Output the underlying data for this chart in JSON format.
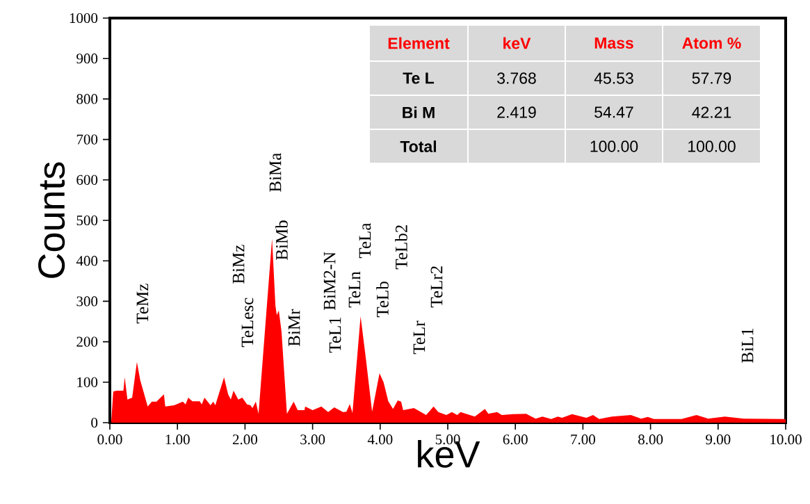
{
  "chart_data": [
    {
      "type": "area",
      "xlabel": "keV",
      "ylabel": "Counts",
      "color": "#ff0000",
      "x": [
        0.02,
        0.05,
        0.1,
        0.2,
        0.22,
        0.26,
        0.33,
        0.4,
        0.45,
        0.56,
        0.62,
        0.69,
        0.8,
        0.82,
        0.95,
        1.08,
        1.12,
        1.16,
        1.22,
        1.33,
        1.36,
        1.4,
        1.49,
        1.53,
        1.56,
        1.69,
        1.75,
        1.79,
        1.83,
        1.9,
        1.96,
        2.03,
        2.08,
        2.11,
        2.16,
        2.2,
        2.4,
        2.45,
        2.47,
        2.5,
        2.54,
        2.62,
        2.72,
        2.78,
        2.88,
        2.89,
        3.0,
        3.13,
        3.23,
        3.32,
        3.45,
        3.5,
        3.55,
        3.59,
        3.71,
        3.79,
        3.88,
        3.99,
        4.05,
        4.12,
        4.19,
        4.26,
        4.31,
        4.34,
        4.5,
        4.68,
        4.79,
        4.86,
        4.98,
        5.06,
        5.14,
        5.19,
        5.27,
        5.4,
        5.55,
        5.6,
        5.73,
        5.8,
        5.96,
        6.16,
        6.3,
        6.4,
        6.53,
        6.63,
        6.69,
        6.84,
        7.05,
        7.15,
        7.24,
        7.43,
        7.71,
        7.86,
        7.96,
        8.05,
        8.46,
        8.68,
        8.85,
        9.1,
        9.38,
        9.97,
        10.0
      ],
      "values": [
        0,
        77,
        79,
        79,
        112,
        57,
        62,
        150,
        105,
        40,
        52,
        52,
        70,
        40,
        43,
        52,
        45,
        62,
        53,
        53,
        45,
        62,
        43,
        52,
        43,
        112,
        70,
        57,
        79,
        57,
        62,
        45,
        43,
        36,
        52,
        22,
        455,
        289,
        266,
        277,
        225,
        22,
        52,
        31,
        31,
        40,
        31,
        40,
        26,
        38,
        26,
        27,
        46,
        24,
        263,
        156,
        27,
        122,
        100,
        53,
        34,
        55,
        52,
        31,
        36,
        19,
        40,
        26,
        19,
        26,
        19,
        26,
        22,
        15,
        34,
        22,
        26,
        19,
        21,
        22,
        10,
        15,
        9,
        15,
        12,
        21,
        12,
        19,
        9,
        15,
        19,
        10,
        14,
        9,
        9,
        19,
        10,
        15,
        10,
        9,
        8
      ],
      "xlim": [
        0,
        10
      ],
      "ylim": [
        0,
        1000
      ],
      "xticks": [
        {
          "value": 0,
          "label": "0.00"
        },
        {
          "value": 1,
          "label": "1.00"
        },
        {
          "value": 2,
          "label": "2.00"
        },
        {
          "value": 3,
          "label": "3.00"
        },
        {
          "value": 4,
          "label": "4.00"
        },
        {
          "value": 5,
          "label": "5.00"
        },
        {
          "value": 6,
          "label": "6.00"
        },
        {
          "value": 7,
          "label": "7.00"
        },
        {
          "value": 8,
          "label": "8.00"
        },
        {
          "value": 9,
          "label": "9.00"
        },
        {
          "value": 10,
          "label": "10.00"
        }
      ],
      "yticks": [
        0,
        100,
        200,
        300,
        400,
        500,
        600,
        700,
        800,
        900,
        1000
      ],
      "annotations": [
        "TeMz",
        "BiMz",
        "TeLesc",
        "BiMa",
        "BiMb",
        "BiMr",
        "TeL1",
        "BiM2-N",
        "TeLn",
        "TeLa",
        "TeLb",
        "TeLb2",
        "TeLr",
        "TeLr2",
        "BiL1"
      ]
    },
    {
      "type": "other",
      "categories": [
        "Element",
        "keV",
        "Mass",
        "Atom %"
      ],
      "y_categories": [
        "Te L",
        "Bi M",
        "Total"
      ],
      "cell_labels": [
        [
          "3.768",
          "45.53",
          "57.79"
        ],
        [
          "2.419",
          "54.47",
          "42.21"
        ],
        [
          null,
          "100.00",
          "100.00"
        ]
      ]
    }
  ]
}
